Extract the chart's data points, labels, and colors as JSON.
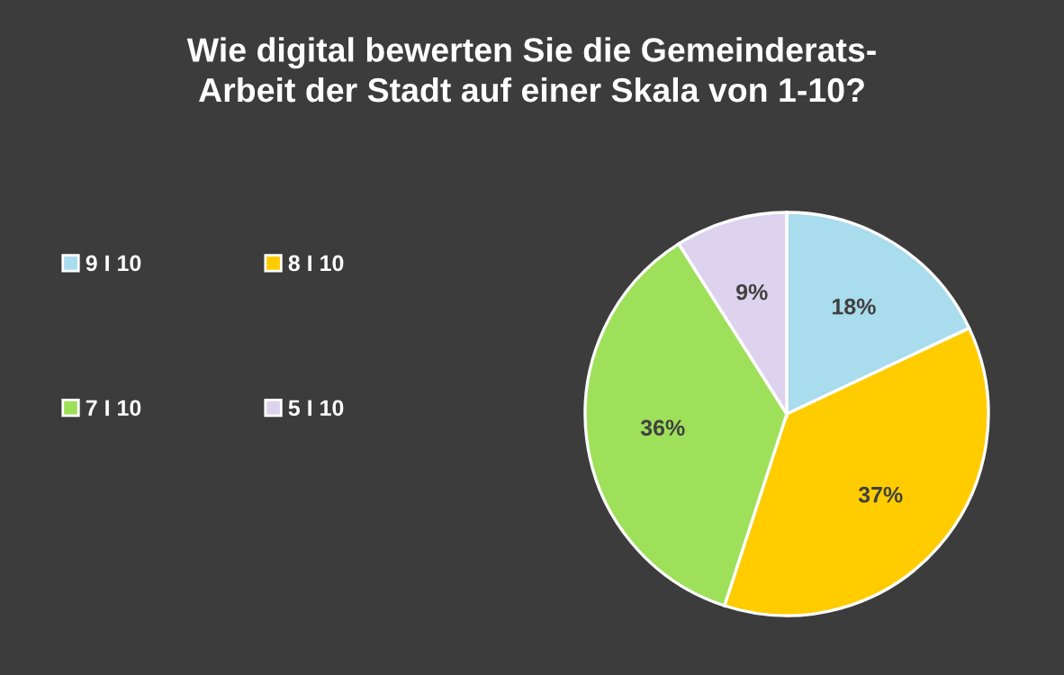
{
  "chart_data": {
    "type": "pie",
    "title": "Wie digital bewerten Sie die Gemeinderats-\nArbeit der Stadt auf einer Skala von 1-10?",
    "categories": [
      "9 I 10",
      "8 I 10",
      "7 I 10",
      "5 I 10"
    ],
    "values": [
      18,
      37,
      36,
      9
    ],
    "colors": [
      "#a9dcec",
      "#ffcc00",
      "#9ee05a",
      "#ddd3ee"
    ],
    "value_labels": [
      "18%",
      "37%",
      "36%",
      "9%"
    ],
    "legend": "left"
  }
}
